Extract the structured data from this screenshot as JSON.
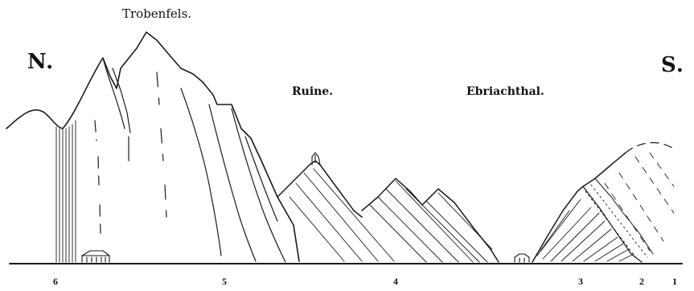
{
  "labels": {
    "title": "Trobenfels.",
    "north": "N.",
    "south": "S.",
    "ruine": "Ruine.",
    "valley": "Ebriachthal."
  },
  "units": [
    "6",
    "5",
    "4",
    "3",
    "2",
    "1"
  ],
  "colors": {
    "ink": "#1a1a1a",
    "paper": "#ffffff"
  }
}
